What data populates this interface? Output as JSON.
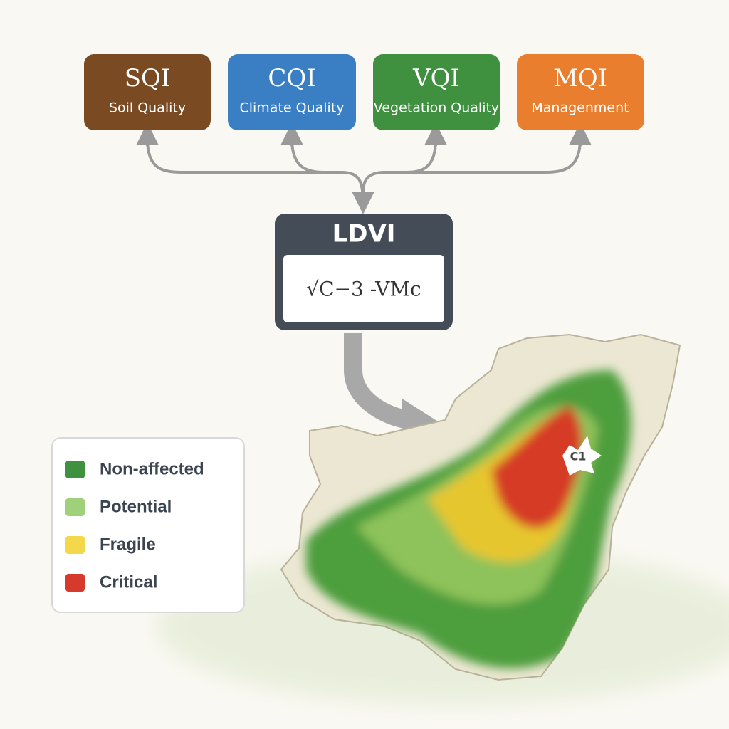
{
  "nodes": [
    {
      "code": "SQI",
      "label": "Soil Quality"
    },
    {
      "code": "CQI",
      "label": "Climate Quality"
    },
    {
      "code": "VQI",
      "label": "Vegetation Quality"
    },
    {
      "code": "MQI",
      "label": "Managenment"
    }
  ],
  "index": {
    "title": "LDVI",
    "formula": "√C−3 -VMc"
  },
  "legend": [
    "Non-affected",
    "Potential",
    "Fragile",
    "Critical"
  ],
  "map": {
    "label": "C1"
  }
}
